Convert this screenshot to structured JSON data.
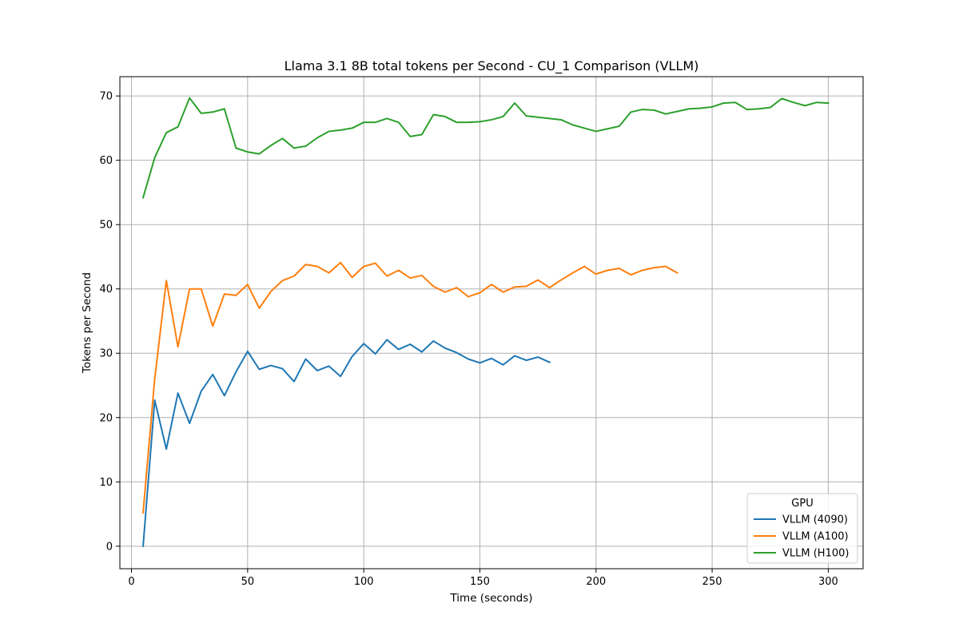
{
  "chart_data": {
    "type": "line",
    "title": "Llama 3.1 8B total tokens per Second - CU_1 Comparison (VLLM)",
    "xlabel": "Time (seconds)",
    "ylabel": "Tokens per Second",
    "xlim": [
      -5,
      315
    ],
    "ylim": [
      -3.5,
      73
    ],
    "xticks": [
      0,
      50,
      100,
      150,
      200,
      250,
      300
    ],
    "yticks": [
      0,
      10,
      20,
      30,
      40,
      50,
      60,
      70
    ],
    "grid": true,
    "legend": {
      "title": "GPU",
      "placement": "lower-right"
    },
    "series": [
      {
        "name": "VLLM (4090)",
        "color": "#1f77b4",
        "x": [
          5,
          10,
          15,
          20,
          25,
          30,
          35,
          40,
          45,
          50,
          55,
          60,
          65,
          70,
          75,
          80,
          85,
          90,
          95,
          100,
          105,
          110,
          115,
          120,
          125,
          130,
          135,
          140,
          145,
          150,
          155,
          160,
          165,
          170,
          175,
          180
        ],
        "y": [
          0,
          22.7,
          15.1,
          23.8,
          19.1,
          24.1,
          26.7,
          23.4,
          27.1,
          30.3,
          27.5,
          28.1,
          27.6,
          25.6,
          29.1,
          27.3,
          28.0,
          26.4,
          29.5,
          31.5,
          29.9,
          32.1,
          30.6,
          31.4,
          30.2,
          31.9,
          30.8,
          30.1,
          29.1,
          28.5,
          29.2,
          28.2,
          29.6,
          28.9,
          29.4,
          28.6
        ]
      },
      {
        "name": "VLLM (A100)",
        "color": "#ff7f0e",
        "x": [
          5,
          10,
          15,
          20,
          25,
          30,
          35,
          40,
          45,
          50,
          55,
          60,
          65,
          70,
          75,
          80,
          85,
          90,
          95,
          100,
          105,
          110,
          115,
          120,
          125,
          130,
          135,
          140,
          145,
          150,
          155,
          160,
          165,
          170,
          175,
          180,
          185,
          190,
          195,
          200,
          205,
          210,
          215,
          220,
          225,
          230,
          235
        ],
        "y": [
          5.2,
          26.0,
          41.3,
          31.0,
          40.0,
          40.0,
          34.2,
          39.2,
          39.0,
          40.7,
          37.0,
          39.6,
          41.3,
          42.0,
          43.8,
          43.5,
          42.5,
          44.1,
          41.8,
          43.5,
          44.0,
          42.0,
          42.9,
          41.7,
          42.1,
          40.4,
          39.5,
          40.2,
          38.8,
          39.4,
          40.7,
          39.5,
          40.3,
          40.4,
          41.4,
          40.2,
          41.4,
          42.5,
          43.5,
          42.3,
          42.9,
          43.2,
          42.2,
          42.9,
          43.3,
          43.5,
          42.5
        ]
      },
      {
        "name": "VLLM (H100)",
        "color": "#2ca02c",
        "x": [
          5,
          10,
          15,
          20,
          25,
          30,
          35,
          40,
          45,
          50,
          55,
          60,
          65,
          70,
          75,
          80,
          85,
          90,
          95,
          100,
          105,
          110,
          115,
          120,
          125,
          130,
          135,
          140,
          145,
          150,
          155,
          160,
          165,
          170,
          175,
          180,
          185,
          190,
          195,
          200,
          205,
          210,
          215,
          220,
          225,
          230,
          235,
          240,
          245,
          250,
          255,
          260,
          265,
          270,
          275,
          280,
          285,
          290,
          295,
          300
        ],
        "y": [
          54.2,
          60.4,
          64.3,
          65.2,
          69.7,
          67.3,
          67.5,
          68.0,
          61.9,
          61.3,
          61.0,
          62.3,
          63.4,
          61.9,
          62.2,
          63.5,
          64.5,
          64.7,
          65.0,
          65.9,
          65.9,
          66.5,
          65.9,
          63.7,
          64.0,
          67.1,
          66.8,
          65.9,
          65.9,
          66.0,
          66.3,
          66.8,
          68.9,
          66.9,
          66.7,
          66.5,
          66.3,
          65.5,
          65.0,
          64.5,
          64.9,
          65.3,
          67.5,
          67.9,
          67.8,
          67.2,
          67.6,
          68.0,
          68.1,
          68.3,
          68.9,
          69.0,
          67.9,
          68.0,
          68.2,
          69.6,
          69.0,
          68.5,
          69.0,
          68.9
        ]
      }
    ]
  }
}
